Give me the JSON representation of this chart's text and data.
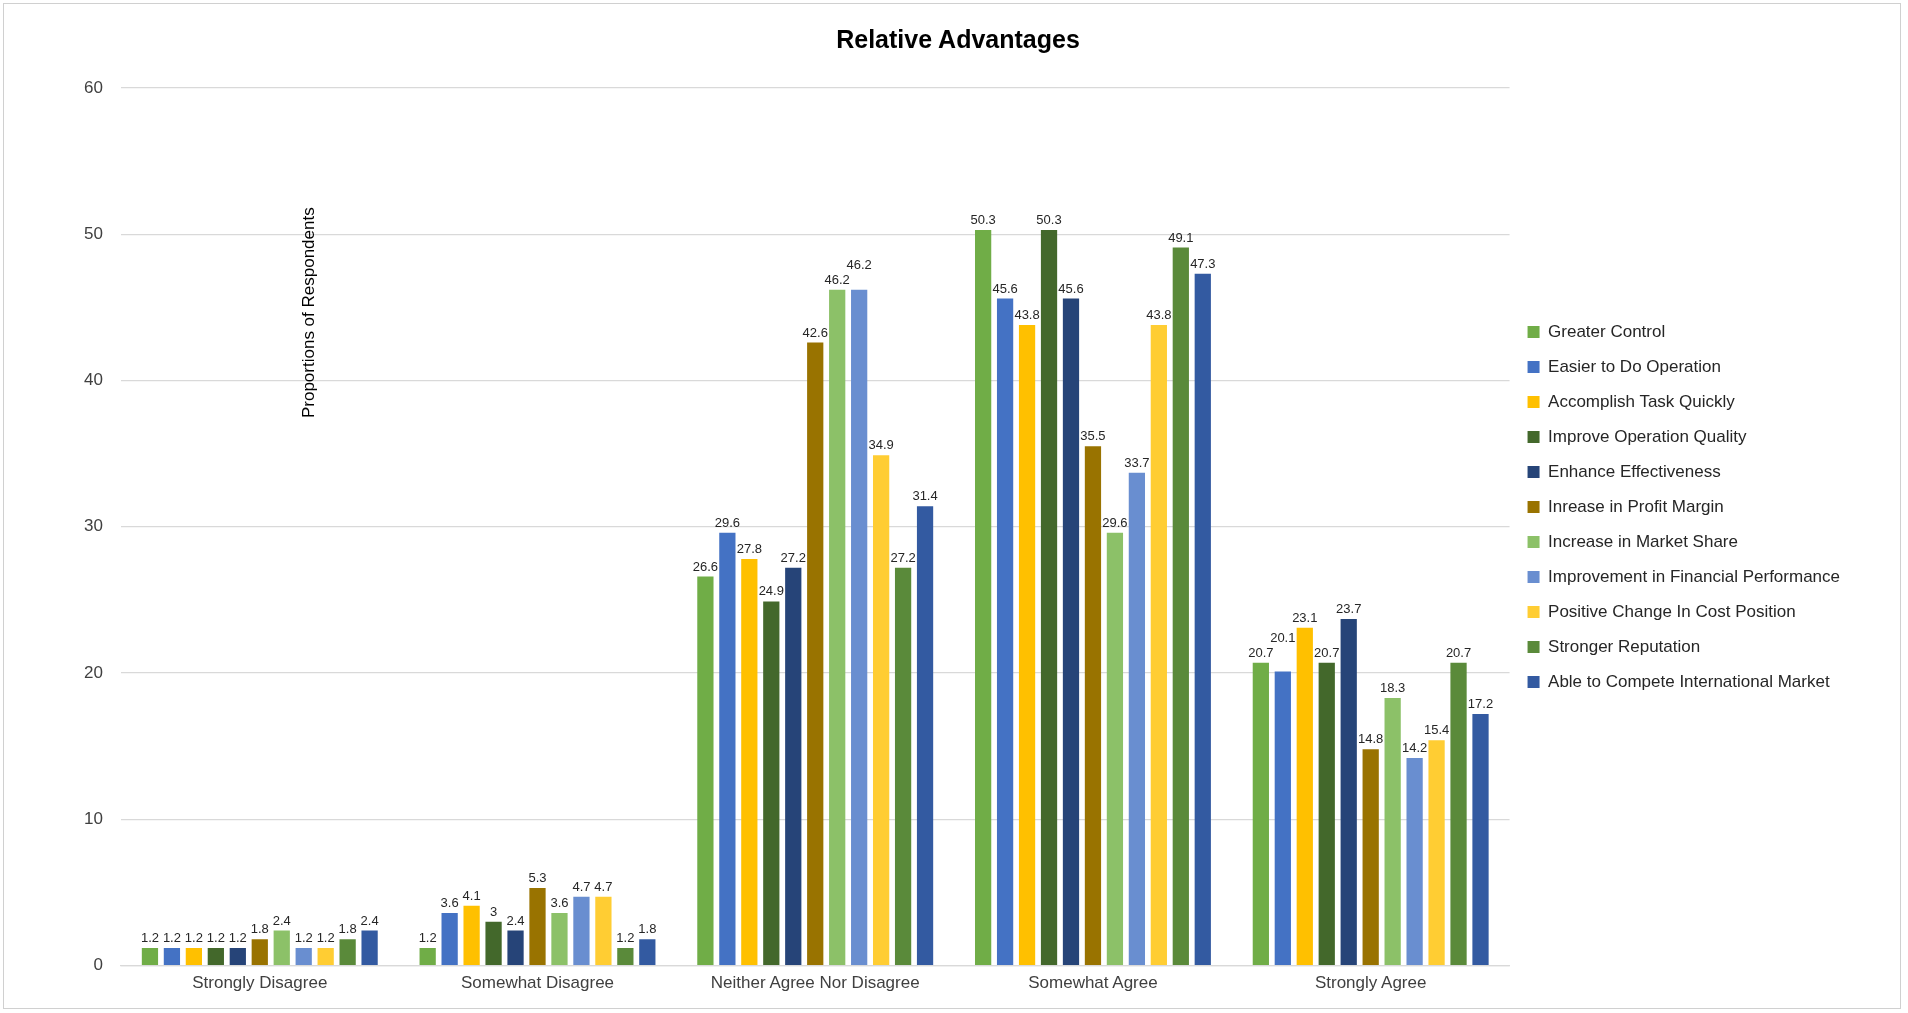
{
  "chart_data": {
    "type": "bar",
    "title": "Relative Advantages",
    "ylabel": "Proportions of Respondents",
    "categories": [
      "Strongly Disagree",
      "Somewhat Disagree",
      "Neither Agree Nor Disagree",
      "Somewhat Agree",
      "Strongly Agree"
    ],
    "series": [
      {
        "name": "Greater Control",
        "color": "#70ad47",
        "values": [
          1.2,
          1.2,
          26.6,
          50.3,
          20.7
        ]
      },
      {
        "name": "Easier to Do Operation",
        "color": "#4472c4",
        "values": [
          1.2,
          3.6,
          29.6,
          45.6,
          20.1
        ]
      },
      {
        "name": "Accomplish Task Quickly",
        "color": "#ffc000",
        "values": [
          1.2,
          4.1,
          27.8,
          43.8,
          23.1
        ]
      },
      {
        "name": "Improve Operation Quality",
        "color": "#43682b",
        "values": [
          1.2,
          3,
          24.9,
          50.3,
          20.7
        ]
      },
      {
        "name": "Enhance Effectiveness",
        "color": "#264478",
        "values": [
          1.2,
          2.4,
          27.2,
          45.6,
          23.7
        ]
      },
      {
        "name": "Inrease in Profit Margin",
        "color": "#997300",
        "values": [
          1.8,
          5.3,
          42.6,
          35.5,
          14.8
        ]
      },
      {
        "name": "Increase in Market Share",
        "color": "#8cc168",
        "values": [
          2.4,
          3.6,
          46.2,
          29.6,
          18.3
        ]
      },
      {
        "name": "Improvement in Financial Performance",
        "color": "#698ed0",
        "values": [
          1.2,
          4.7,
          46.2,
          33.7,
          14.2
        ]
      },
      {
        "name": "Positive Change In Cost Position",
        "color": "#ffcd33",
        "values": [
          1.2,
          4.7,
          34.9,
          43.8,
          15.4
        ]
      },
      {
        "name": "Stronger Reputation",
        "color": "#5a8a3a",
        "values": [
          1.8,
          1.2,
          27.2,
          49.1,
          20.7
        ]
      },
      {
        "name": "Able to Compete International Market",
        "color": "#335aa1",
        "values": [
          2.4,
          1.8,
          31.4,
          47.3,
          17.2
        ]
      }
    ],
    "ylim": [
      0,
      60
    ],
    "yticks": [
      0,
      10,
      20,
      30,
      40,
      50,
      60
    ],
    "grid": "y",
    "legend": "right",
    "data_labels": true
  }
}
